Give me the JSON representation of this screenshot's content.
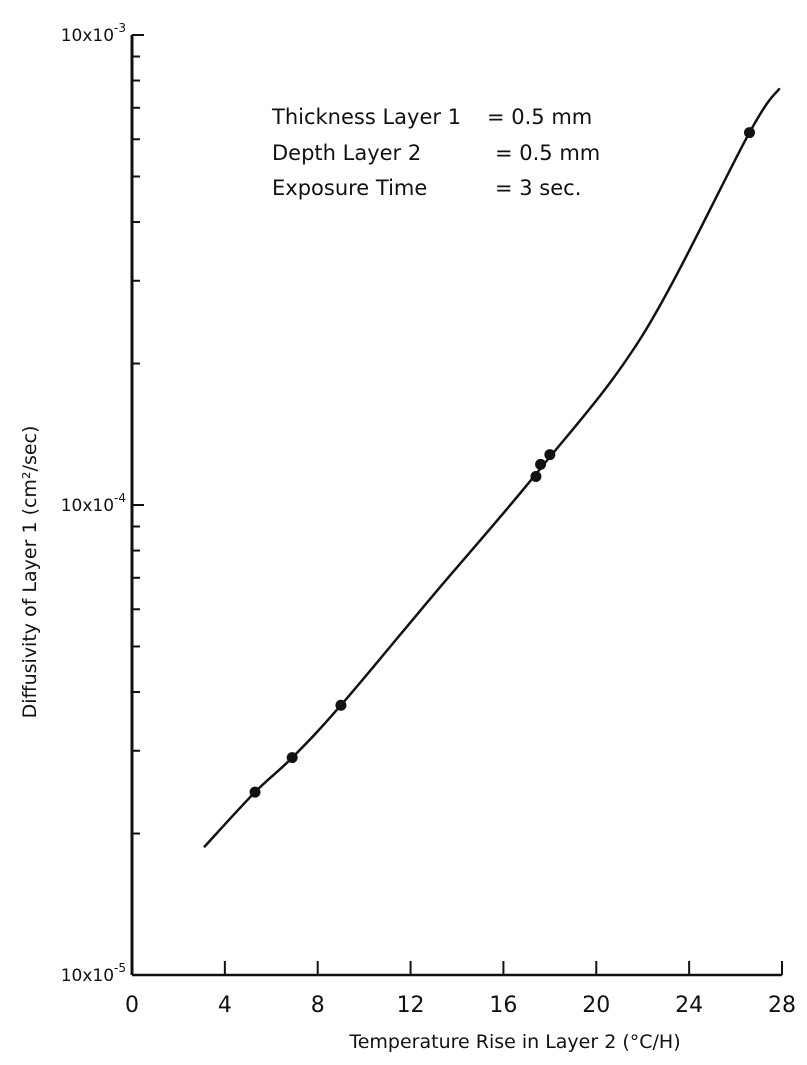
{
  "chart_data": {
    "type": "line",
    "title": "",
    "xlabel": "Temperature Rise in Layer 2 (°C/H)",
    "ylabel": "Diffusivity of Layer 1 (cm²/sec)",
    "xlim": [
      0,
      28
    ],
    "ylim": [
      1e-05,
      0.001
    ],
    "yscale": "log",
    "grid": false,
    "x_ticks": [
      "0",
      "4",
      "8",
      "12",
      "16",
      "20",
      "24",
      "28"
    ],
    "y_tick_labels": [
      {
        "value": 0.001,
        "base": "10x10",
        "exp": "-3"
      },
      {
        "value": 0.0001,
        "base": "10x10",
        "exp": "-4"
      },
      {
        "value": 1e-05,
        "base": "10x10",
        "exp": "-5"
      }
    ],
    "annotations": [
      {
        "label": "Thickness Layer 1",
        "value": "= 0.5 mm"
      },
      {
        "label": "Depth Layer 2",
        "value": "= 0.5 mm"
      },
      {
        "label": "Exposure Time",
        "value": "= 3 sec."
      }
    ],
    "series": [
      {
        "name": "",
        "points": [
          {
            "x": 5.3,
            "y": 2.45e-05
          },
          {
            "x": 6.9,
            "y": 2.9e-05
          },
          {
            "x": 9.0,
            "y": 3.75e-05
          },
          {
            "x": 17.4,
            "y": 0.000115
          },
          {
            "x": 17.6,
            "y": 0.000122
          },
          {
            "x": 18.0,
            "y": 0.000128
          },
          {
            "x": 26.6,
            "y": 0.00062
          }
        ],
        "fit_curve": [
          {
            "x": 3.1,
            "y": 1.87e-05
          },
          {
            "x": 5.3,
            "y": 2.45e-05
          },
          {
            "x": 6.9,
            "y": 2.9e-05
          },
          {
            "x": 9.0,
            "y": 3.75e-05
          },
          {
            "x": 13.0,
            "y": 6.45e-05
          },
          {
            "x": 17.5,
            "y": 0.000118
          },
          {
            "x": 22.0,
            "y": 0.00023
          },
          {
            "x": 26.6,
            "y": 0.00062
          },
          {
            "x": 27.9,
            "y": 0.00077
          }
        ]
      }
    ]
  }
}
